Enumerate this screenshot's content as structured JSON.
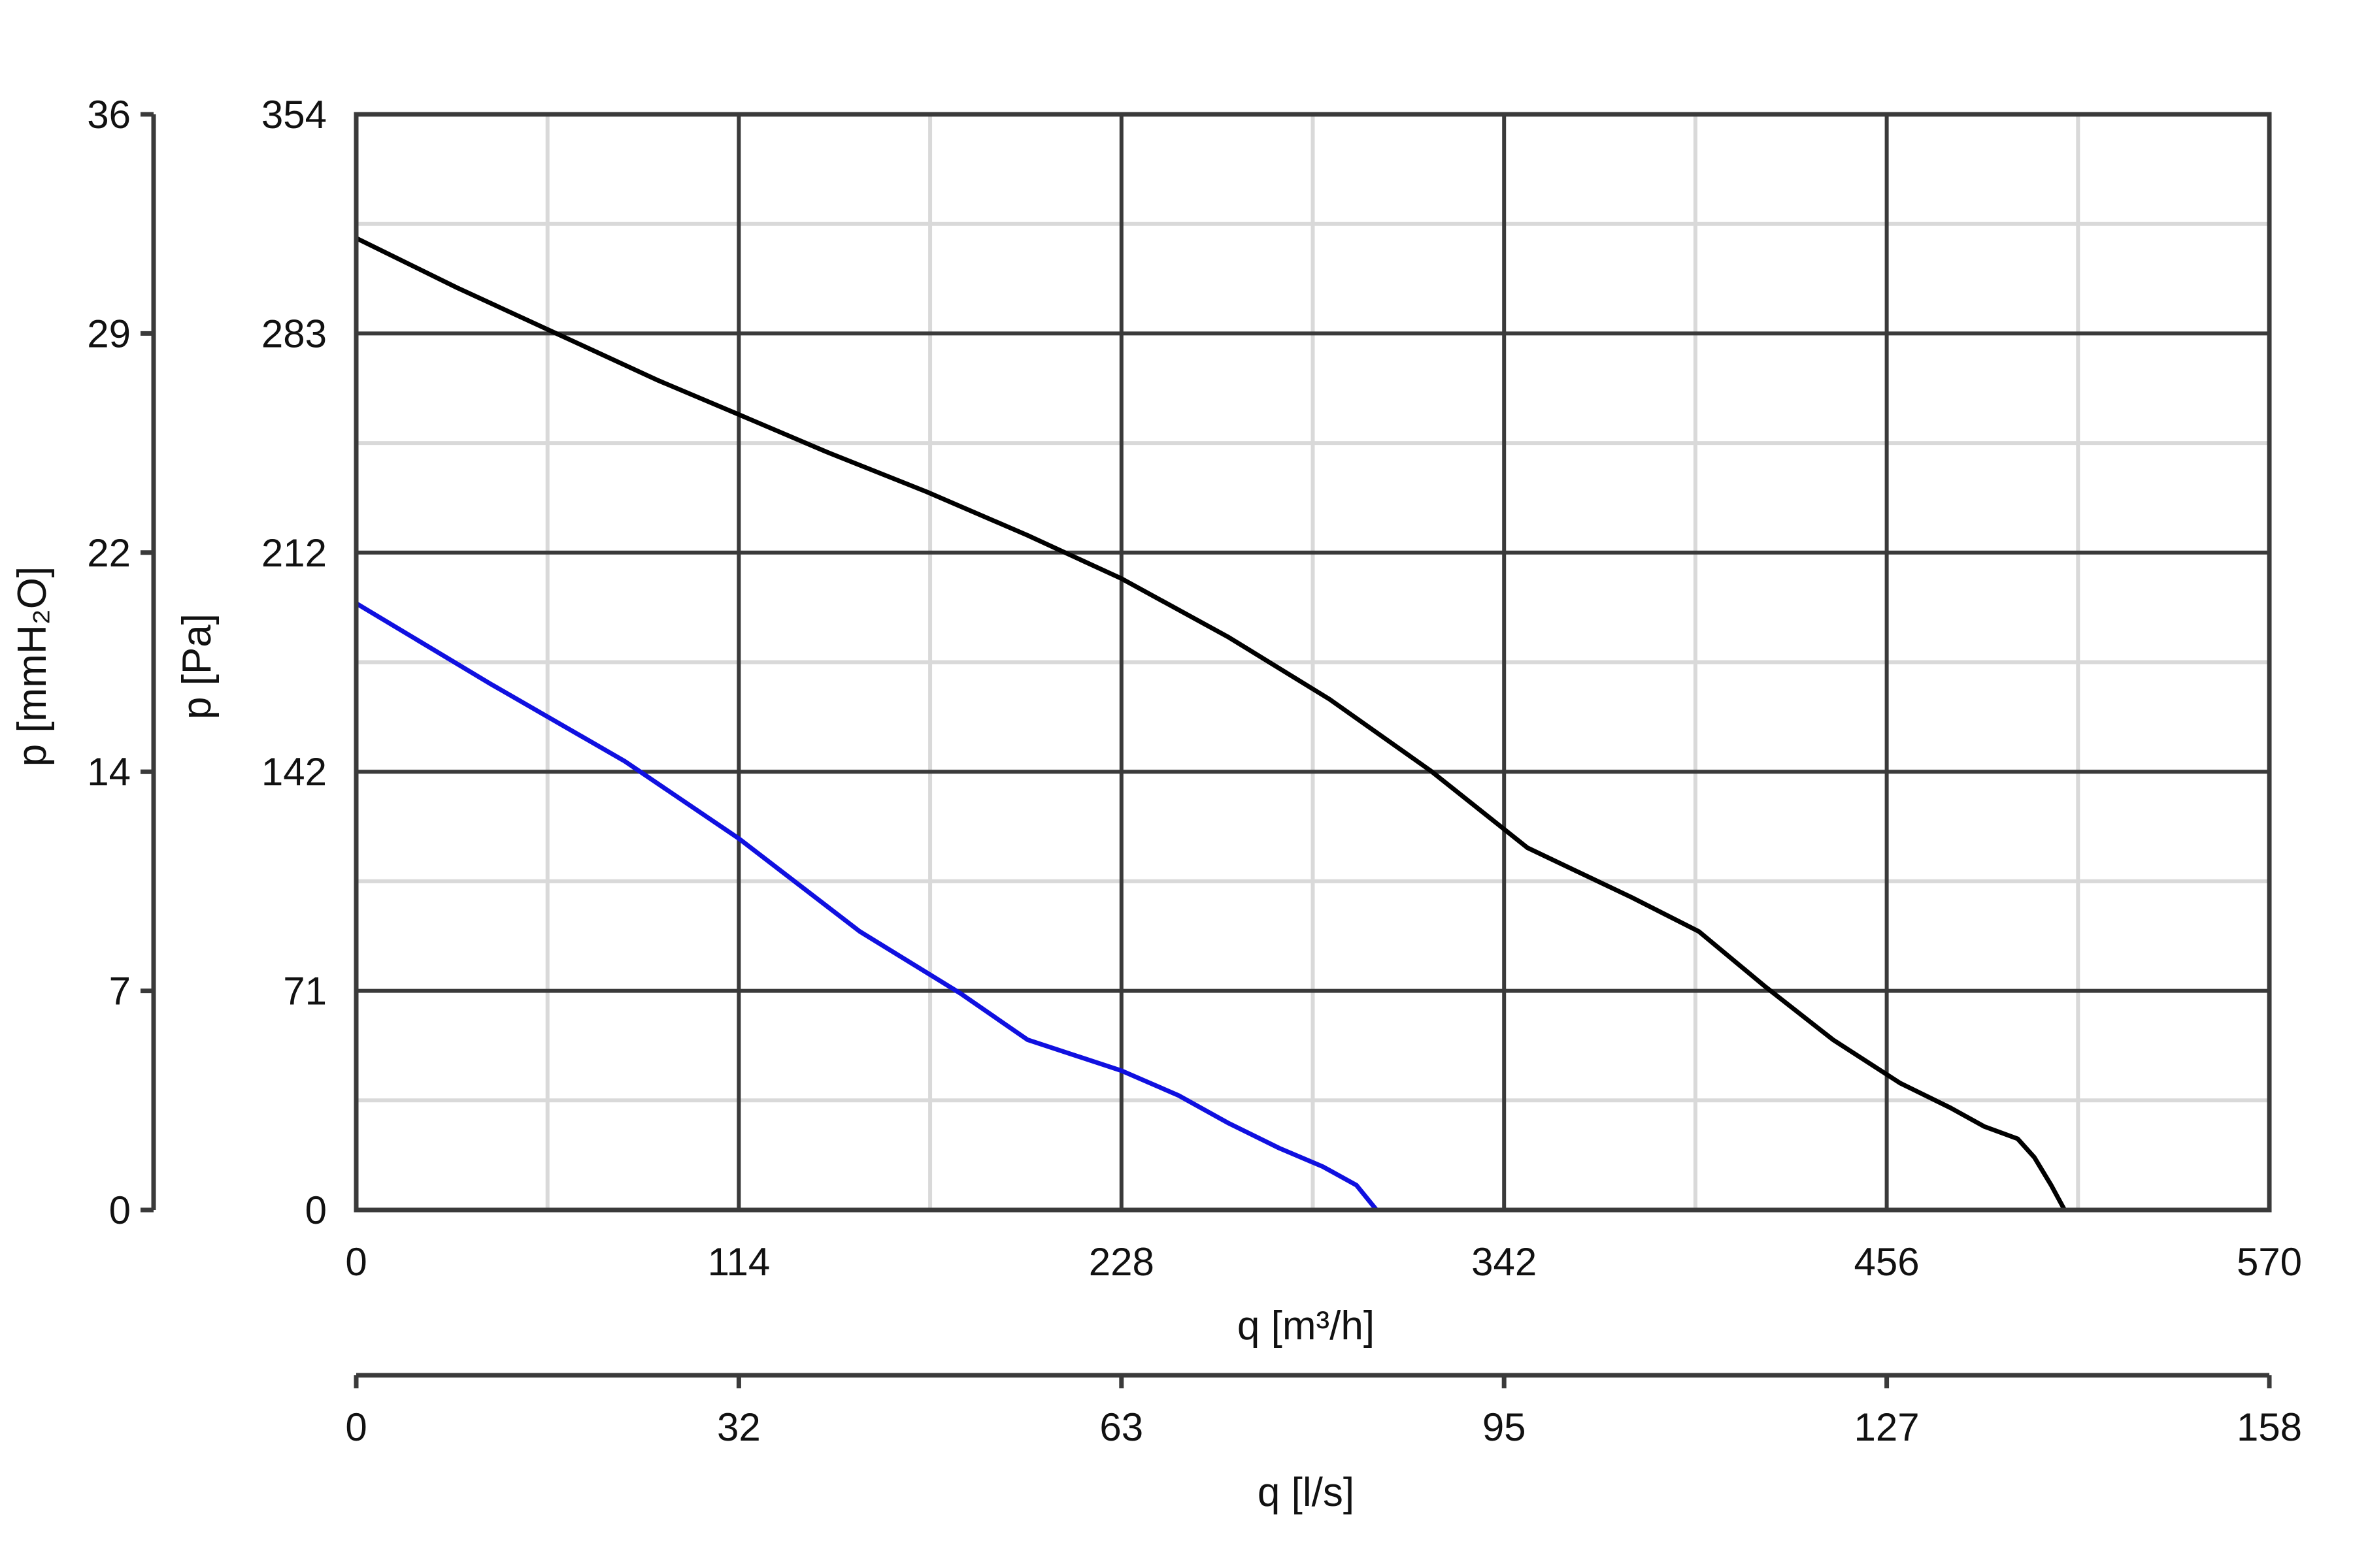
{
  "chart_data": {
    "type": "line",
    "xlabel": "q [m³/h]",
    "xlabel_secondary": "q [l/s]",
    "ylabel": "p [Pa]",
    "ylabel_secondary": "p [mmH₂O]",
    "xlim": [
      0,
      570
    ],
    "ylim": [
      0,
      354
    ],
    "x_ticks": [
      "0",
      "114",
      "228",
      "342",
      "456",
      "570"
    ],
    "x_ticks_secondary": [
      "0",
      "32",
      "63",
      "95",
      "127",
      "158"
    ],
    "y_ticks": [
      "0",
      "71",
      "142",
      "212",
      "283",
      "354"
    ],
    "y_ticks_secondary": [
      "0",
      "7",
      "14",
      "22",
      "29",
      "36"
    ],
    "grid": true,
    "series": [
      {
        "color": "#000000",
        "points": [
          [
            0,
            314
          ],
          [
            30,
            298
          ],
          [
            60,
            283
          ],
          [
            90,
            268
          ],
          [
            114,
            257
          ],
          [
            140,
            245
          ],
          [
            170,
            232
          ],
          [
            200,
            218
          ],
          [
            228,
            204
          ],
          [
            260,
            185
          ],
          [
            290,
            165
          ],
          [
            320,
            142
          ],
          [
            349,
            117
          ],
          [
            380,
            101
          ],
          [
            400,
            90
          ],
          [
            420,
            72
          ],
          [
            440,
            55
          ],
          [
            460,
            41
          ],
          [
            475,
            33
          ],
          [
            485,
            27
          ],
          [
            495,
            23
          ],
          [
            500,
            17
          ],
          [
            505,
            8
          ],
          [
            509,
            0
          ]
        ]
      },
      {
        "color": "#1010e0",
        "points": [
          [
            0,
            196
          ],
          [
            40,
            170
          ],
          [
            80,
            145
          ],
          [
            114,
            120
          ],
          [
            150,
            90
          ],
          [
            180,
            70
          ],
          [
            200,
            55
          ],
          [
            228,
            45
          ],
          [
            245,
            37
          ],
          [
            260,
            28
          ],
          [
            275,
            20
          ],
          [
            288,
            14
          ],
          [
            298,
            8
          ],
          [
            304,
            0
          ]
        ]
      }
    ]
  }
}
